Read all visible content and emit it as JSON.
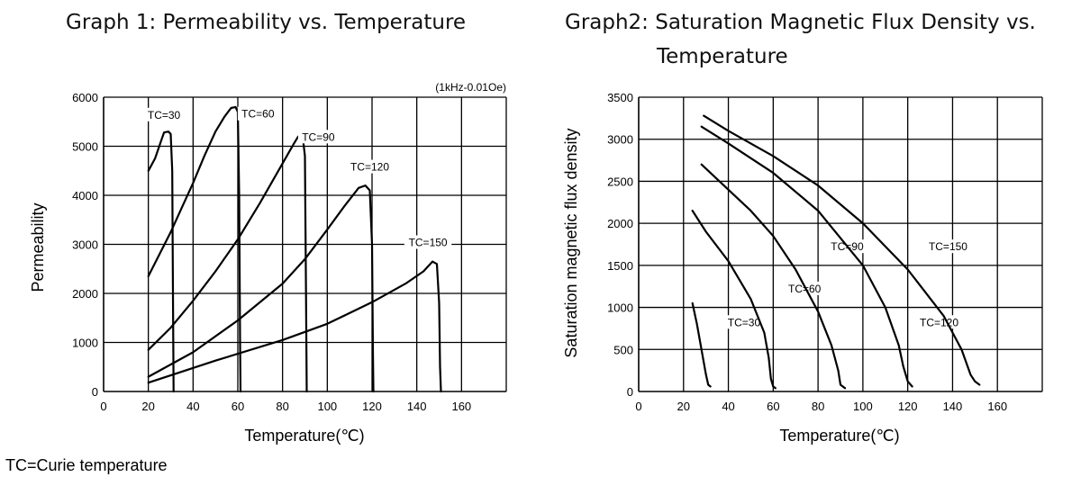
{
  "titles": {
    "graph1": "Graph 1: Permeability vs. Temperature",
    "graph2_line1": "Graph2: Saturation Magnetic Flux Density vs.",
    "graph2_line2": "Temperature"
  },
  "footnote": "TC=Curie temperature",
  "colors": {
    "line": "#000000",
    "grid": "#000000",
    "label_bg": "#ffffff"
  },
  "chart_data": [
    {
      "type": "line",
      "title": "Graph 1: Permeability vs. Temperature",
      "xlabel": "Temperature(℃)",
      "ylabel": "Permeability",
      "note": "(1kHz-0.01Oe)",
      "xlim": [
        0,
        180
      ],
      "ylim": [
        0,
        6000
      ],
      "xticks": [
        0,
        20,
        40,
        60,
        80,
        100,
        120,
        140,
        160
      ],
      "yticks": [
        0,
        1000,
        2000,
        3000,
        4000,
        5000,
        6000
      ],
      "grid": true,
      "series": [
        {
          "name": "TC=30",
          "label_at": [
            27,
            5600
          ],
          "points": [
            [
              20,
              4500
            ],
            [
              23,
              4750
            ],
            [
              26,
              5150
            ],
            [
              27,
              5280
            ],
            [
              29,
              5300
            ],
            [
              30,
              5250
            ],
            [
              30.7,
              4500
            ],
            [
              31,
              2000
            ],
            [
              31.3,
              0
            ]
          ]
        },
        {
          "name": "TC=60",
          "label_at": [
            69,
            5620
          ],
          "points": [
            [
              20,
              2350
            ],
            [
              25,
              2800
            ],
            [
              30,
              3250
            ],
            [
              35,
              3750
            ],
            [
              40,
              4250
            ],
            [
              45,
              4800
            ],
            [
              50,
              5300
            ],
            [
              54,
              5600
            ],
            [
              57,
              5780
            ],
            [
              59,
              5800
            ],
            [
              60,
              5700
            ],
            [
              60.6,
              4000
            ],
            [
              61,
              1000
            ],
            [
              61.2,
              0
            ]
          ]
        },
        {
          "name": "TC=90",
          "label_at": [
            96,
            5150
          ],
          "points": [
            [
              20,
              850
            ],
            [
              30,
              1300
            ],
            [
              40,
              1850
            ],
            [
              50,
              2450
            ],
            [
              60,
              3100
            ],
            [
              70,
              3850
            ],
            [
              80,
              4650
            ],
            [
              85,
              5050
            ],
            [
              87,
              5200
            ],
            [
              89,
              5200
            ],
            [
              90,
              4800
            ],
            [
              90.5,
              2000
            ],
            [
              90.8,
              0
            ]
          ]
        },
        {
          "name": "TC=120",
          "label_at": [
            119,
            4540
          ],
          "points": [
            [
              20,
              300
            ],
            [
              40,
              800
            ],
            [
              60,
              1450
            ],
            [
              80,
              2200
            ],
            [
              90,
              2700
            ],
            [
              100,
              3300
            ],
            [
              108,
              3800
            ],
            [
              114,
              4150
            ],
            [
              117,
              4200
            ],
            [
              119,
              4100
            ],
            [
              120,
              3000
            ],
            [
              120.4,
              800
            ],
            [
              120.6,
              0
            ]
          ]
        },
        {
          "name": "TC=150",
          "label_at": [
            145,
            3000
          ],
          "points": [
            [
              20,
              180
            ],
            [
              50,
              630
            ],
            [
              80,
              1050
            ],
            [
              100,
              1380
            ],
            [
              120,
              1820
            ],
            [
              135,
              2200
            ],
            [
              143,
              2450
            ],
            [
              147,
              2650
            ],
            [
              149,
              2600
            ],
            [
              150,
              1800
            ],
            [
              150.4,
              500
            ],
            [
              150.8,
              0
            ]
          ]
        }
      ]
    },
    {
      "type": "line",
      "title": "Graph2: Saturation Magnetic Flux Density vs. Temperature",
      "xlabel": "Temperature(℃)",
      "ylabel": "Saturation magnetic flux density",
      "xlim": [
        0,
        180
      ],
      "ylim": [
        0,
        3500
      ],
      "xticks": [
        0,
        20,
        40,
        60,
        80,
        100,
        120,
        140,
        160
      ],
      "yticks": [
        0,
        500,
        1000,
        1500,
        2000,
        2500,
        3000,
        3500
      ],
      "grid": true,
      "series": [
        {
          "name": "TC=30",
          "label_at": [
            47,
            800
          ],
          "points": [
            [
              24,
              1050
            ],
            [
              26,
              800
            ],
            [
              28,
              500
            ],
            [
              30,
              200
            ],
            [
              31,
              80
            ],
            [
              32,
              60
            ]
          ]
        },
        {
          "name": "TC=60",
          "label_at": [
            74,
            1200
          ],
          "points": [
            [
              24,
              2150
            ],
            [
              30,
              1900
            ],
            [
              40,
              1550
            ],
            [
              50,
              1100
            ],
            [
              56,
              700
            ],
            [
              58,
              400
            ],
            [
              59,
              150
            ],
            [
              60,
              60
            ],
            [
              61,
              40
            ]
          ]
        },
        {
          "name": "TC=90",
          "label_at": [
            93,
            1700
          ],
          "points": [
            [
              28,
              2700
            ],
            [
              40,
              2400
            ],
            [
              50,
              2150
            ],
            [
              60,
              1850
            ],
            [
              70,
              1450
            ],
            [
              80,
              950
            ],
            [
              86,
              550
            ],
            [
              89,
              250
            ],
            [
              90,
              80
            ],
            [
              92,
              40
            ]
          ]
        },
        {
          "name": "TC=120",
          "label_at": [
            134,
            800
          ],
          "points": [
            [
              28,
              3150
            ],
            [
              40,
              2950
            ],
            [
              60,
              2600
            ],
            [
              80,
              2150
            ],
            [
              100,
              1500
            ],
            [
              110,
              1000
            ],
            [
              116,
              550
            ],
            [
              118,
              300
            ],
            [
              120,
              120
            ],
            [
              122,
              60
            ]
          ]
        },
        {
          "name": "TC=150",
          "label_at": [
            138,
            1700
          ],
          "points": [
            [
              29,
              3280
            ],
            [
              40,
              3100
            ],
            [
              60,
              2800
            ],
            [
              80,
              2450
            ],
            [
              100,
              2000
            ],
            [
              120,
              1450
            ],
            [
              136,
              900
            ],
            [
              144,
              500
            ],
            [
              148,
              200
            ],
            [
              150,
              120
            ],
            [
              152,
              80
            ]
          ]
        }
      ]
    }
  ]
}
